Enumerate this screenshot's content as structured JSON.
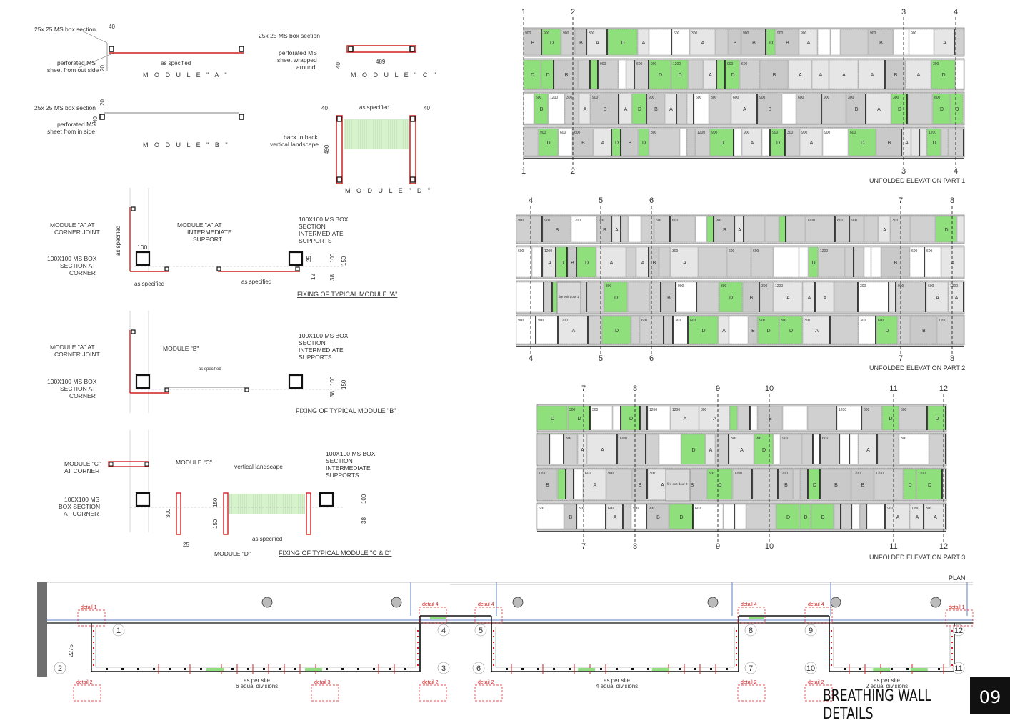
{
  "sheet": {
    "title": "BREATHING WALL DETAILS",
    "number": "09"
  },
  "colors": {
    "red": "#d21f1f",
    "green": "#8fe07d",
    "green_hatch": "#d8f2cf",
    "panel_gray": "#d7d7d7",
    "panel_dark": "#bdbdbd",
    "line": "#111111",
    "blue": "#5f7fc8"
  },
  "modules": {
    "a": {
      "title": "M O D U L E  \" A \"",
      "box": "25x 25 MS box section",
      "sheet": "perforated MS sheet from out side",
      "sheet_1": "perforated MS",
      "sheet_2": "sheet from out side",
      "dim_top": "40",
      "dim_side": "20",
      "span": "as specified"
    },
    "b": {
      "title": "M O D U L E  \" B \"",
      "box": "25x 25 MS box section",
      "sheet_1": "perforated MS",
      "sheet_2": "sheet from in side",
      "dim_top": "20",
      "dim_side": "40"
    },
    "c": {
      "title": "M O D U L E  \" C \"",
      "box": "25x 25 MS box section",
      "sheet_1": "perforated MS",
      "sheet_2": "sheet wrapped",
      "sheet_3": "around",
      "dim_len": "489",
      "dim_side": "40"
    },
    "d": {
      "title": "M O D U L E  \" D \"",
      "dim_left": "40",
      "dim_right": "40",
      "span": "as specified",
      "note_1": "back to back",
      "note_2": "vertical landscape",
      "dim_h": "490"
    }
  },
  "fixing_a": {
    "caption": "FIXING OF TYPICAL MODULE \"A\"",
    "corner_joint": [
      "MODULE \"A\" AT",
      "CORNER JOINT"
    ],
    "intermediate": [
      "MODULE \"A\" AT",
      "INTERMEDIATE",
      "SUPPORT"
    ],
    "box_corner": [
      "100X100 MS BOX",
      "SECTION AT",
      "CORNER"
    ],
    "box_int": [
      "100X100 MS BOX",
      "SECTION",
      "INTERMEDIATE",
      "SUPPORTS"
    ],
    "as_spec_v": "as specified",
    "as_spec_1": "as specified",
    "as_spec_2": "as specified",
    "d100": "100",
    "d25": "25",
    "d100b": "100",
    "d150": "150",
    "d38": "38",
    "d12": "12"
  },
  "fixing_b": {
    "caption": "FIXING OF TYPICAL MODULE \"B\"",
    "corner_joint": [
      "MODULE \"A\" AT",
      "CORNER JOINT"
    ],
    "module_b": "MODULE \"B\"",
    "box_corner": [
      "100X100 MS BOX",
      "SECTION AT",
      "CORNER"
    ],
    "box_int": [
      "100X100 MS BOX",
      "SECTION",
      "INTERMEDIATE",
      "SUPPORTS"
    ],
    "as_spec": "as specified",
    "d100": "100",
    "d150": "150",
    "d38": "38"
  },
  "fixing_cd": {
    "caption": "FIXING OF TYPICAL MODULE \"C & D\"",
    "module_c_corner": [
      "MODULE \"C\"",
      "AT CORNER"
    ],
    "module_c": "MODULE \"C\"",
    "vertical": "vertical landscape",
    "box_corner": [
      "100X100 MS",
      "BOX SECTION",
      "AT CORNER"
    ],
    "box_int": [
      "100X100 MS BOX",
      "SECTION",
      "INTERMEDIATE",
      "SUPPORTS"
    ],
    "module_d": "MODULE \"D\"",
    "as_spec": "as specified",
    "d300": "300",
    "d150a": "150",
    "d150b": "150",
    "d25": "25",
    "d100": "100",
    "d38": "38"
  },
  "elevations": [
    {
      "caption": "UNFOLDED ELEVATION PART 1",
      "grids": [
        "1",
        "2",
        "3",
        "4"
      ]
    },
    {
      "caption": "UNFOLDED ELEVATION PART 2",
      "grids": [
        "4",
        "5",
        "6",
        "7",
        "8"
      ]
    },
    {
      "caption": "UNFOLDED ELEVATION PART 3",
      "grids": [
        "7",
        "8",
        "9",
        "10",
        "11",
        "12"
      ]
    }
  ],
  "panel_labels": [
    "A",
    "B",
    "D",
    "600",
    "900",
    "1200",
    "300",
    "fire exit door 1",
    "fire exit door 2"
  ],
  "plan": {
    "caption": "PLAN",
    "grids": [
      "1",
      "2",
      "3",
      "4",
      "5",
      "6",
      "7",
      "8",
      "9",
      "10",
      "11",
      "12"
    ],
    "details": [
      "detail 1",
      "detail 2",
      "detail 3",
      "detail 4"
    ],
    "div1": [
      "as per site",
      "6 equal divisions"
    ],
    "div2": [
      "as per site",
      "4 equal divisions"
    ],
    "div3": [
      "as per site",
      "2 equal divisions"
    ],
    "dim": "2275"
  }
}
